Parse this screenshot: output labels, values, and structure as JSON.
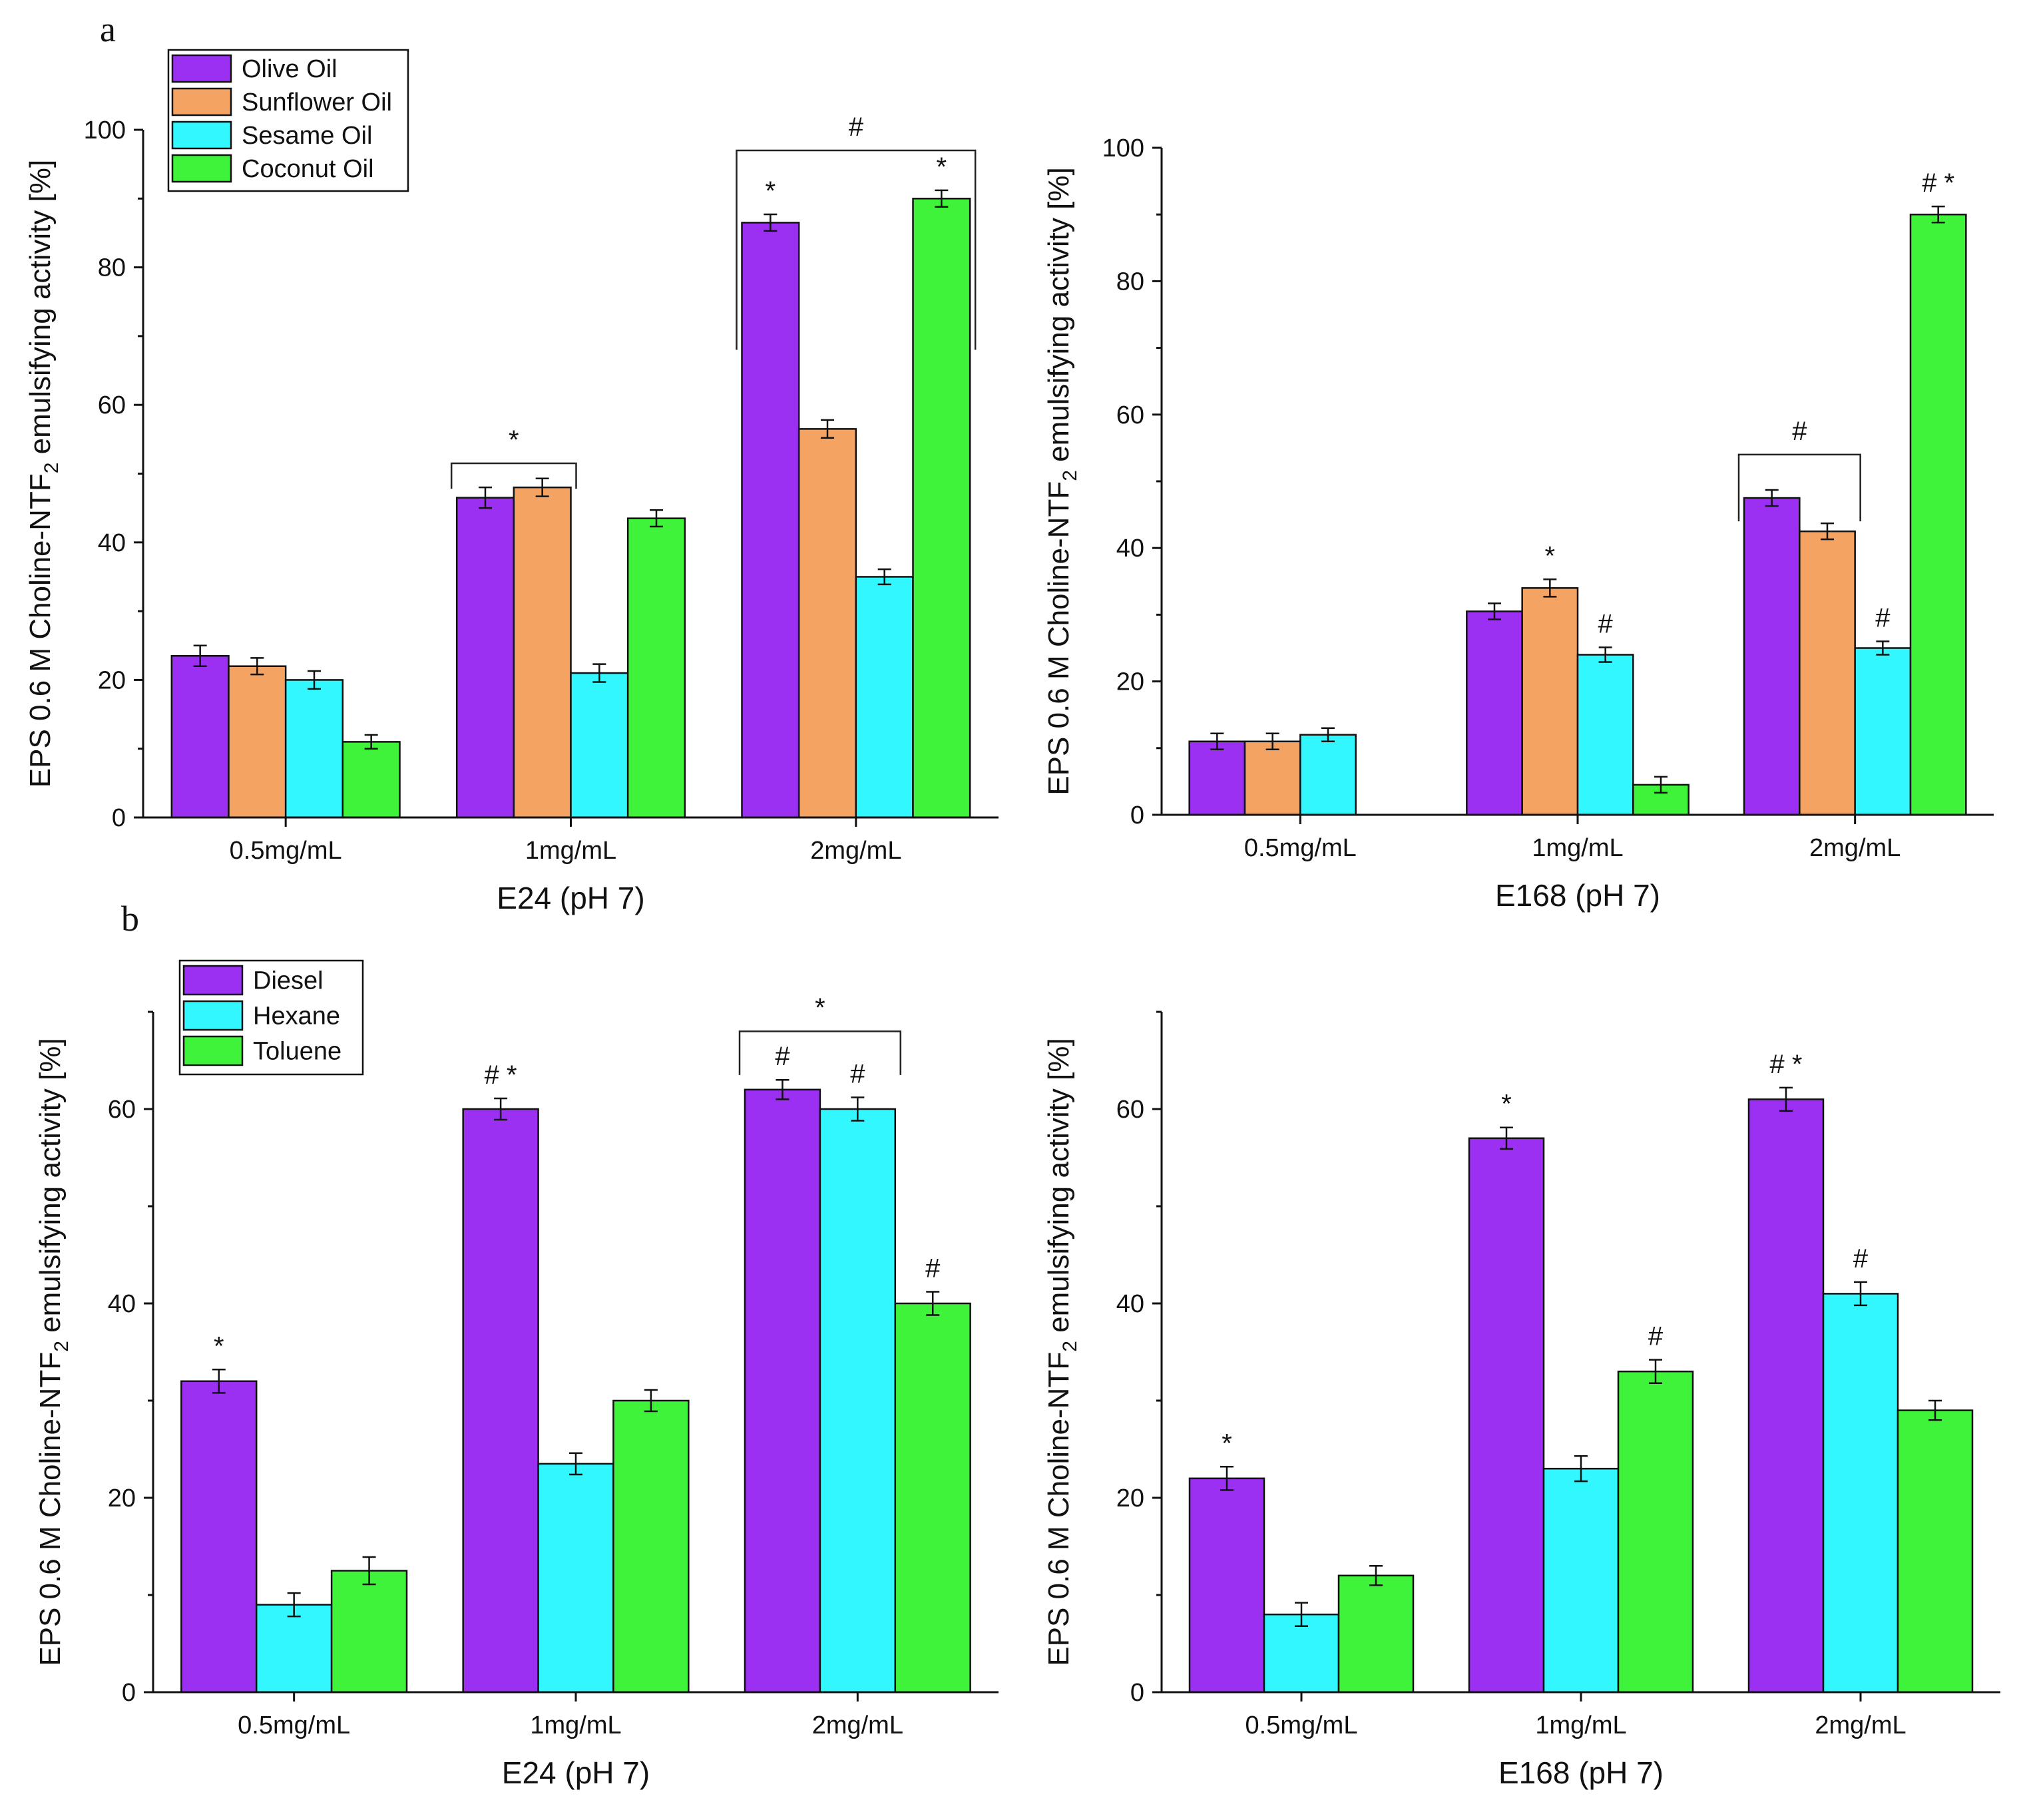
{
  "panel_labels": [
    "a",
    "b"
  ],
  "colors": {
    "Olive Oil": "#9b30f2",
    "Sunflower Oil": "#f4a362",
    "Sesame Oil": "#33f7ff",
    "Coconut Oil": "#3ff23a",
    "Diesel": "#9b30f2",
    "Hexane": "#33f7ff",
    "Toluene": "#3ff23a"
  },
  "chart_data": [
    {
      "id": "a-E24",
      "type": "bar",
      "panel": "a",
      "xlabel": "E24 (pH 7)",
      "ylabel": "EPS 0.6 M Choline-NTF2 emulsifying activity [%]",
      "ylabel_parts": {
        "pre": "EPS 0.6 M Choline-NTF",
        "sub": "2",
        "post": " emulsifying activity [%]"
      },
      "ylim": [
        0,
        100
      ],
      "yticks": [
        0,
        20,
        40,
        60,
        80,
        100
      ],
      "categories": [
        "0.5mg/mL",
        "1mg/mL",
        "2mg/mL"
      ],
      "legend": true,
      "series": [
        {
          "name": "Olive Oil",
          "values": [
            23.5,
            46.5,
            86.5
          ],
          "errors": [
            1.5,
            1.5,
            1.2
          ],
          "marks": [
            "",
            "",
            "*"
          ]
        },
        {
          "name": "Sunflower Oil",
          "values": [
            22,
            48,
            56.5
          ],
          "errors": [
            1.2,
            1.3,
            1.3
          ],
          "marks": [
            "",
            "",
            ""
          ]
        },
        {
          "name": "Sesame Oil",
          "values": [
            20,
            21,
            35
          ],
          "errors": [
            1.3,
            1.3,
            1.1
          ],
          "marks": [
            "",
            "",
            ""
          ]
        },
        {
          "name": "Coconut Oil",
          "values": [
            11,
            43.5,
            90
          ],
          "errors": [
            1,
            1.2,
            1.2
          ],
          "marks": [
            "",
            "",
            "*"
          ]
        }
      ],
      "brackets": [
        {
          "category": 1,
          "from_series": 0,
          "to_series": 1,
          "level": 51.5,
          "drop": 47.8,
          "label": "*"
        },
        {
          "category": 2,
          "from_series": 0,
          "to_series": 3,
          "level": 97,
          "drop": 68,
          "label": "#"
        }
      ]
    },
    {
      "id": "a-E168",
      "type": "bar",
      "panel": "a",
      "xlabel": "E168 (pH 7)",
      "ylabel": "EPS 0.6 M Choline-NTF2 emulsifying activity [%]",
      "ylabel_parts": {
        "pre": "EPS 0.6 M Choline-NTF",
        "sub": "2",
        "post": " emulsifying activity [%]"
      },
      "ylim": [
        0,
        100
      ],
      "yticks": [
        0,
        20,
        40,
        60,
        80,
        100
      ],
      "categories": [
        "0.5mg/mL",
        "1mg/mL",
        "2mg/mL"
      ],
      "legend": false,
      "series": [
        {
          "name": "Olive Oil",
          "values": [
            11,
            30.5,
            47.5
          ],
          "errors": [
            1.2,
            1.2,
            1.2
          ],
          "marks": [
            "",
            "",
            ""
          ]
        },
        {
          "name": "Sunflower Oil",
          "values": [
            11,
            34,
            42.5
          ],
          "errors": [
            1.2,
            1.3,
            1.2
          ],
          "marks": [
            "",
            "*",
            ""
          ]
        },
        {
          "name": "Sesame Oil",
          "values": [
            12,
            24,
            25
          ],
          "errors": [
            1,
            1.1,
            1
          ],
          "marks": [
            "",
            "#",
            "#"
          ]
        },
        {
          "name": "Coconut Oil",
          "values": [
            null,
            4.5,
            90
          ],
          "errors": [
            0,
            1.2,
            1.2
          ],
          "marks": [
            "",
            "",
            "# *"
          ]
        }
      ],
      "brackets": [
        {
          "category": 2,
          "from_series": 0,
          "to_series": 1,
          "level": 54,
          "drop": 44,
          "label": "#"
        }
      ]
    },
    {
      "id": "b-E24",
      "type": "bar",
      "panel": "b",
      "xlabel": "E24 (pH 7)",
      "ylabel": "EPS 0.6 M Choline-NTF2 emulsifying activity [%]",
      "ylabel_parts": {
        "pre": "EPS 0.6 M Choline-NTF",
        "sub": "2",
        "post": " emulsifying activity [%]"
      },
      "ylim": [
        0,
        70
      ],
      "yticks": [
        0,
        20,
        40,
        60
      ],
      "categories": [
        "0.5mg/mL",
        "1mg/mL",
        "2mg/mL"
      ],
      "legend": true,
      "series": [
        {
          "name": "Diesel",
          "values": [
            32,
            60,
            62
          ],
          "errors": [
            1.2,
            1.1,
            1
          ],
          "marks": [
            "*",
            "# *",
            "#"
          ]
        },
        {
          "name": "Hexane",
          "values": [
            9,
            23.5,
            60
          ],
          "errors": [
            1.2,
            1.1,
            1.2
          ],
          "marks": [
            "",
            "",
            "#"
          ]
        },
        {
          "name": "Toluene",
          "values": [
            12.5,
            30,
            40
          ],
          "errors": [
            1.4,
            1.1,
            1.2
          ],
          "marks": [
            "",
            "",
            "#"
          ]
        }
      ],
      "brackets": [
        {
          "category": 2,
          "from_series": 0,
          "to_series": 1,
          "level": 68,
          "drop": 63.5,
          "label": "*"
        }
      ]
    },
    {
      "id": "b-E168",
      "type": "bar",
      "panel": "b",
      "xlabel": "E168 (pH 7)",
      "ylabel": "EPS 0.6 M Choline-NTF2 emulsifying activity [%]",
      "ylabel_parts": {
        "pre": "EPS 0.6 M Choline-NTF",
        "sub": "2",
        "post": " emulsifying activity [%]"
      },
      "ylim": [
        0,
        70
      ],
      "yticks": [
        0,
        20,
        40,
        60
      ],
      "categories": [
        "0.5mg/mL",
        "1mg/mL",
        "2mg/mL"
      ],
      "legend": false,
      "series": [
        {
          "name": "Diesel",
          "values": [
            22,
            57,
            61
          ],
          "errors": [
            1.2,
            1.1,
            1.2
          ],
          "marks": [
            "*",
            "*",
            "# *"
          ]
        },
        {
          "name": "Hexane",
          "values": [
            8,
            23,
            41
          ],
          "errors": [
            1.2,
            1.3,
            1.2
          ],
          "marks": [
            "",
            "",
            "#"
          ]
        },
        {
          "name": "Toluene",
          "values": [
            12,
            33,
            29
          ],
          "errors": [
            1,
            1.2,
            1
          ],
          "marks": [
            "",
            "#",
            ""
          ]
        }
      ],
      "brackets": []
    }
  ]
}
